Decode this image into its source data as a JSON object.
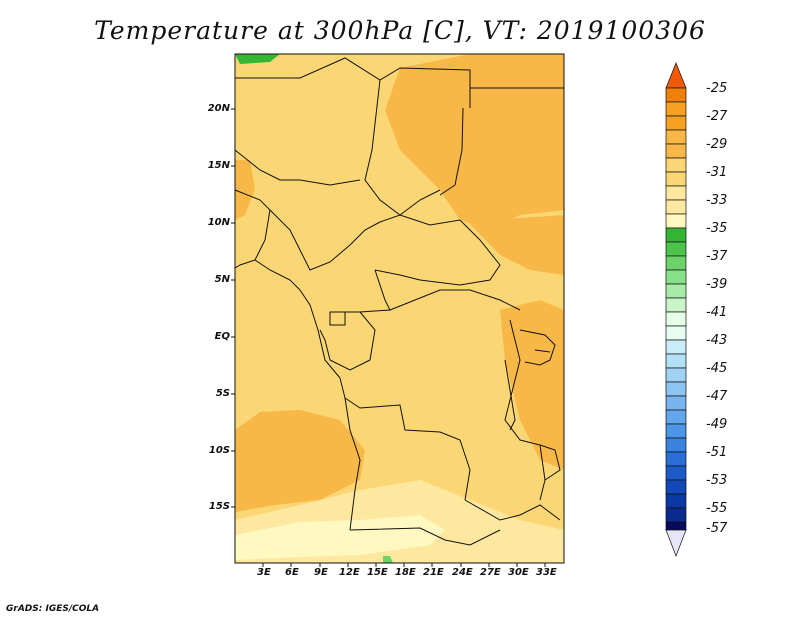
{
  "title": "Temperature at 300hPa [C], VT: 2019100306",
  "credit": "GrADS: IGES/COLA",
  "lat_labels": [
    "20N",
    "15N",
    "10N",
    "5N",
    "EQ",
    "5S",
    "10S",
    "15S"
  ],
  "lon_labels": [
    "3E",
    "6E",
    "9E",
    "12E",
    "15E",
    "18E",
    "21E",
    "24E",
    "27E",
    "30E",
    "33E"
  ],
  "colorbar": {
    "labels": [
      "-25",
      "-27",
      "-29",
      "-31",
      "-33",
      "-35",
      "-37",
      "-39",
      "-41",
      "-43",
      "-45",
      "-47",
      "-49",
      "-51",
      "-53",
      "-55",
      "-57"
    ],
    "colors": [
      "#f05a0a",
      "#f0800a",
      "#f5a020",
      "#f8b848",
      "#fbd675",
      "#fee8a0",
      "#fff8c0",
      "#34b634",
      "#6ad46a",
      "#a6eca6",
      "#e6ffe6",
      "#c8ecf8",
      "#a0d2f5",
      "#78b4ef",
      "#4c96e8",
      "#2a6ed8",
      "#1248b8",
      "#0a2a92",
      "#080a5a",
      "#e6e6f8"
    ]
  },
  "legend_colors": {
    "c29": "#f8b848",
    "c31": "#fbd675",
    "c33": "#fee8a0",
    "c35": "#fff8c0",
    "c37": "#34b634",
    "c39": "#6ad46a"
  }
}
